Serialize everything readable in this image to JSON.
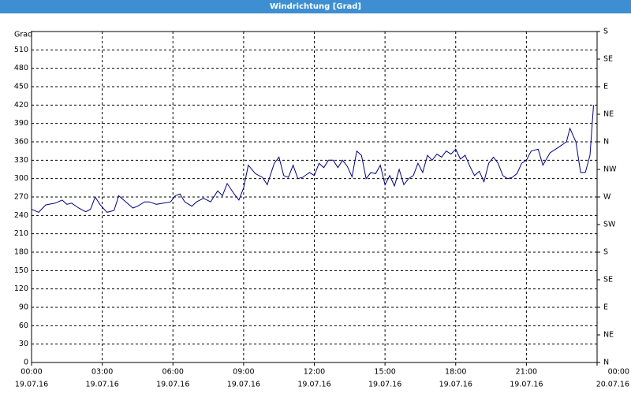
{
  "chart_data": {
    "type": "line",
    "title": "Windrichtung [Grad]",
    "y_label": "Grad",
    "x": [
      0,
      0.3,
      0.6,
      1.0,
      1.3,
      1.5,
      1.7,
      2.0,
      2.3,
      2.5,
      2.7,
      2.9,
      3.2,
      3.5,
      3.7,
      4.0,
      4.3,
      4.5,
      4.8,
      5.0,
      5.3,
      5.6,
      5.9,
      6.1,
      6.3,
      6.5,
      6.8,
      7.0,
      7.3,
      7.6,
      7.9,
      8.1,
      8.3,
      8.6,
      8.8,
      9.0,
      9.2,
      9.5,
      9.8,
      10.0,
      10.3,
      10.5,
      10.7,
      10.9,
      11.1,
      11.3,
      11.5,
      11.8,
      12.0,
      12.2,
      12.4,
      12.6,
      12.8,
      13.0,
      13.2,
      13.4,
      13.6,
      13.8,
      14.0,
      14.2,
      14.4,
      14.6,
      14.8,
      15.0,
      15.2,
      15.4,
      15.6,
      15.8,
      16.0,
      16.2,
      16.4,
      16.6,
      16.8,
      17.0,
      17.2,
      17.4,
      17.6,
      17.8,
      18.0,
      18.2,
      18.4,
      18.6,
      18.8,
      19.0,
      19.2,
      19.4,
      19.6,
      19.8,
      20.0,
      20.2,
      20.4,
      20.6,
      20.8,
      21.0,
      21.2,
      21.5,
      21.7,
      22.0,
      22.4,
      22.7,
      22.85,
      23.1,
      23.3,
      23.5,
      23.7,
      23.85
    ],
    "series": [
      {
        "name": "Windrichtung",
        "color": "#000080",
        "values": [
          250,
          245,
          257,
          260,
          265,
          258,
          260,
          252,
          246,
          250,
          270,
          258,
          245,
          248,
          272,
          262,
          252,
          255,
          262,
          262,
          258,
          260,
          262,
          272,
          275,
          262,
          255,
          262,
          268,
          262,
          280,
          272,
          292,
          275,
          265,
          285,
          322,
          308,
          302,
          290,
          325,
          335,
          305,
          302,
          322,
          300,
          302,
          310,
          305,
          325,
          318,
          330,
          330,
          318,
          330,
          320,
          303,
          345,
          338,
          300,
          310,
          308,
          322,
          290,
          305,
          288,
          315,
          290,
          300,
          305,
          325,
          310,
          338,
          330,
          340,
          335,
          345,
          340,
          348,
          332,
          338,
          320,
          305,
          312,
          295,
          325,
          335,
          325,
          305,
          300,
          302,
          308,
          325,
          330,
          345,
          348,
          322,
          342,
          352,
          360,
          382,
          360,
          310,
          310,
          338,
          420
        ]
      }
    ],
    "xlim": [
      0,
      24
    ],
    "xticks": [
      {
        "value": 0,
        "label": "00:00",
        "date": "19.07.16"
      },
      {
        "value": 3,
        "label": "03:00",
        "date": "19.07.16"
      },
      {
        "value": 6,
        "label": "06:00",
        "date": "19.07.16"
      },
      {
        "value": 9,
        "label": "09:00",
        "date": "19.07.16"
      },
      {
        "value": 12,
        "label": "12:00",
        "date": "19.07.16"
      },
      {
        "value": 15,
        "label": "15:00",
        "date": "19.07.16"
      },
      {
        "value": 18,
        "label": "18:00",
        "date": "19.07.16"
      },
      {
        "value": 21,
        "label": "21:00",
        "date": "19.07.16"
      },
      {
        "value": 24,
        "label": "00:00",
        "date": "20.07.16"
      }
    ],
    "ylim": [
      0,
      540
    ],
    "yticks": [
      0,
      30,
      60,
      90,
      120,
      150,
      180,
      210,
      240,
      270,
      300,
      330,
      360,
      390,
      420,
      450,
      480,
      510
    ],
    "y2lim": [
      0,
      540
    ],
    "y2ticks": [
      {
        "value": 0,
        "label": "N"
      },
      {
        "value": 45,
        "label": "NE"
      },
      {
        "value": 90,
        "label": "E"
      },
      {
        "value": 135,
        "label": "SE"
      },
      {
        "value": 180,
        "label": "S"
      },
      {
        "value": 225,
        "label": "SW"
      },
      {
        "value": 270,
        "label": "W"
      },
      {
        "value": 315,
        "label": "NW"
      },
      {
        "value": 360,
        "label": "N"
      },
      {
        "value": 405,
        "label": "NE"
      },
      {
        "value": 450,
        "label": "E"
      },
      {
        "value": 495,
        "label": "SE"
      },
      {
        "value": 540,
        "label": "S"
      }
    ],
    "grid": true
  }
}
